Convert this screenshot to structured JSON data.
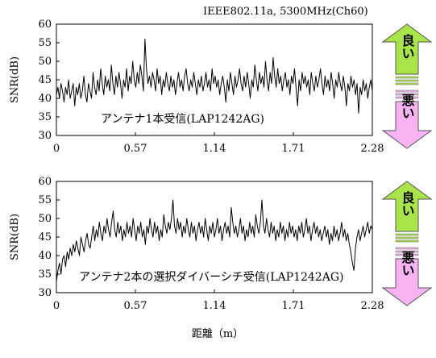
{
  "header": {
    "text": "IEEE802.11a,   5300MHz(Ch60)"
  },
  "chart_data": [
    {
      "type": "line",
      "ylabel": "SNR(dB)",
      "xlabel": "",
      "ylim": [
        30,
        60
      ],
      "xlim": [
        0,
        2.28
      ],
      "yticks": [
        "30",
        "35",
        "40",
        "45",
        "50",
        "55",
        "60"
      ],
      "xticks": [
        "0",
        "0.57",
        "1.14",
        "1.71",
        "2.28"
      ],
      "annotation": "アンテナ1本受信(LAP1242AG)",
      "series": [
        {
          "values": [
            41,
            43,
            40,
            44,
            42,
            39,
            43,
            41,
            45,
            40,
            42,
            44,
            38,
            43,
            41,
            44,
            40,
            42,
            46,
            41,
            39,
            44,
            42,
            40,
            47,
            43,
            41,
            45,
            42,
            48,
            44,
            41,
            46,
            43,
            45,
            42,
            49,
            44,
            41,
            46,
            43,
            47,
            44,
            40,
            45,
            43,
            48,
            42,
            46,
            44,
            50,
            45,
            43,
            47,
            44,
            49,
            46,
            42,
            56,
            48,
            44,
            46,
            43,
            47,
            45,
            42,
            48,
            44,
            46,
            41,
            45,
            43,
            47,
            44,
            42,
            46,
            43,
            45,
            41,
            44,
            47,
            43,
            45,
            42,
            46,
            48,
            44,
            42,
            45,
            43,
            47,
            44,
            41,
            45,
            43,
            46,
            42,
            44,
            47,
            43,
            45,
            42,
            48,
            44,
            46,
            43,
            45,
            41,
            44,
            46,
            43,
            39,
            45,
            42,
            47,
            44,
            41,
            46,
            43,
            45,
            48,
            44,
            42,
            46,
            43,
            47,
            44,
            40,
            45,
            43,
            49,
            45,
            42,
            47,
            44,
            46,
            43,
            50,
            45,
            42,
            47,
            44,
            51,
            46,
            43,
            48,
            44,
            46,
            42,
            45,
            47,
            43,
            45,
            41,
            46,
            44,
            48,
            43,
            38,
            45,
            42,
            47,
            44,
            46,
            43,
            45,
            41,
            47,
            44,
            42,
            46,
            43,
            45,
            48,
            44,
            41,
            46,
            43,
            45,
            42,
            47,
            44,
            40,
            45,
            43,
            47,
            44,
            42,
            46,
            43,
            38,
            44,
            42,
            46,
            43,
            45,
            41,
            44,
            36,
            43,
            41,
            45,
            42,
            44,
            40,
            43,
            45,
            42
          ]
        }
      ]
    },
    {
      "type": "line",
      "ylabel": "SNR(dB)",
      "xlabel": "距離（m）",
      "ylim": [
        30,
        60
      ],
      "xlim": [
        0,
        2.28
      ],
      "yticks": [
        "30",
        "35",
        "40",
        "45",
        "50",
        "55",
        "60"
      ],
      "xticks": [
        "0",
        "0.57",
        "1.14",
        "1.71",
        "2.28"
      ],
      "annotation": "アンテナ2本の選択ダイバーシチ受信(LAP1242AG)",
      "series": [
        {
          "values": [
            33,
            36,
            38,
            35,
            39,
            40,
            37,
            41,
            39,
            42,
            40,
            43,
            41,
            44,
            42,
            40,
            45,
            43,
            41,
            44,
            46,
            43,
            42,
            45,
            48,
            44,
            47,
            45,
            49,
            46,
            44,
            48,
            46,
            50,
            47,
            45,
            49,
            52,
            47,
            45,
            49,
            46,
            48,
            44,
            47,
            45,
            49,
            46,
            48,
            45,
            50,
            47,
            44,
            48,
            46,
            49,
            45,
            47,
            43,
            48,
            46,
            50,
            47,
            45,
            49,
            46,
            48,
            44,
            47,
            45,
            51,
            48,
            46,
            49,
            47,
            50,
            55,
            48,
            46,
            50,
            47,
            49,
            45,
            48,
            46,
            50,
            47,
            45,
            49,
            46,
            48,
            44,
            47,
            49,
            46,
            48,
            45,
            50,
            47,
            44,
            48,
            46,
            49,
            45,
            47,
            50,
            46,
            48,
            44,
            47,
            49,
            46,
            48,
            45,
            53,
            49,
            46,
            48,
            45,
            47,
            50,
            46,
            48,
            44,
            47,
            45,
            49,
            46,
            48,
            45,
            51,
            48,
            46,
            49,
            55,
            48,
            46,
            50,
            47,
            45,
            49,
            46,
            48,
            44,
            47,
            45,
            49,
            46,
            48,
            44,
            47,
            45,
            49,
            46,
            48,
            45,
            47,
            44,
            48,
            46,
            49,
            45,
            47,
            50,
            46,
            48,
            44,
            47,
            49,
            46,
            48,
            45,
            47,
            44,
            46,
            48,
            45,
            47,
            43,
            46,
            44,
            48,
            45,
            47,
            44,
            46,
            49,
            45,
            47,
            44,
            46,
            43,
            41,
            38,
            36,
            42,
            45,
            47,
            44,
            46,
            48,
            45,
            47,
            49,
            46,
            48,
            47
          ]
        }
      ]
    }
  ],
  "indicators": {
    "good_text": "良い",
    "bad_text": "悪い",
    "good_color": "#a9e54a",
    "bad_color": "#f7b3f2"
  }
}
